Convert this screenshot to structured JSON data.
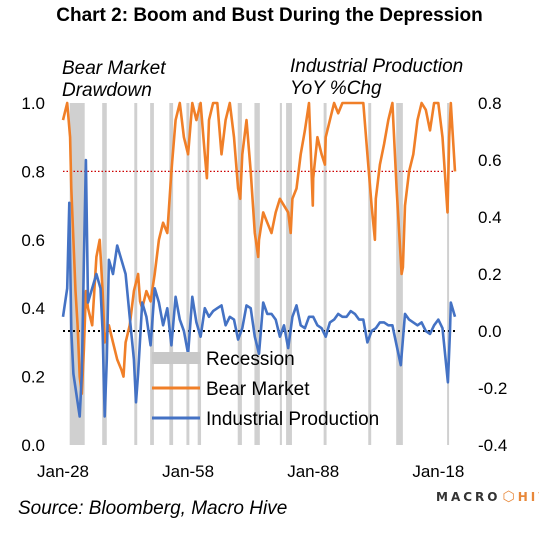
{
  "chart_data": {
    "type": "line",
    "title": "Chart 2: Boom and Bust During the Depression",
    "left_axis": {
      "label": "Bear Market Drawdown",
      "min": 0.0,
      "max": 1.0,
      "ticks": [
        "0.0",
        "0.2",
        "0.4",
        "0.6",
        "0.8",
        "1.0"
      ]
    },
    "right_axis": {
      "label": "Industrial Production YoY %Chg",
      "min": -0.4,
      "max": 0.8,
      "ticks": [
        "-0.4",
        "-0.2",
        "0.0",
        "0.2",
        "0.4",
        "0.6",
        "0.8"
      ]
    },
    "x_axis": {
      "min": 1928,
      "max": 2022,
      "ticks": [
        "Jan-28",
        "Jan-58",
        "Jan-88",
        "Jan-18"
      ],
      "tick_years": [
        1928,
        1958,
        1988,
        2018
      ]
    },
    "reference_lines": [
      {
        "axis": "left",
        "value": 0.8,
        "style": "dotted",
        "color": "#cc0000"
      },
      {
        "axis": "right",
        "value": 0.0,
        "style": "dotted",
        "color": "#000000"
      }
    ],
    "legend": {
      "placement": "bottom-center",
      "entries": [
        {
          "label": "Recession",
          "color": "#c8c8c8"
        },
        {
          "label": "Bear Market",
          "color": "#f07f28"
        },
        {
          "label": "Industrial Production",
          "color": "#4472c4"
        }
      ]
    },
    "recessions": [
      [
        1929.6,
        1933.2
      ],
      [
        1937.4,
        1938.5
      ],
      [
        1945.1,
        1945.8
      ],
      [
        1948.9,
        1949.8
      ],
      [
        1953.5,
        1954.4
      ],
      [
        1957.6,
        1958.3
      ],
      [
        1960.3,
        1961.1
      ],
      [
        1969.9,
        1970.9
      ],
      [
        1973.9,
        1975.2
      ],
      [
        1980.0,
        1980.5
      ],
      [
        1981.5,
        1982.9
      ],
      [
        1990.5,
        1991.2
      ],
      [
        2001.2,
        2001.9
      ],
      [
        2007.9,
        2009.5
      ],
      [
        2020.1,
        2020.4
      ]
    ],
    "series": [
      {
        "name": "Bear Market",
        "axis": "left",
        "color": "#f07f28",
        "x": [
          1928,
          1929,
          1929.7,
          1930,
          1930.5,
          1931,
          1931.5,
          1932,
          1932.5,
          1933,
          1933.5,
          1934,
          1935,
          1936,
          1936.8,
          1937.5,
          1938,
          1939,
          1940,
          1941,
          1942,
          1942.5,
          1943,
          1944,
          1945,
          1946,
          1946.5,
          1947,
          1948,
          1949,
          1950,
          1951,
          1952,
          1953,
          1954,
          1955,
          1956,
          1957,
          1958,
          1959,
          1960,
          1961,
          1962,
          1962.5,
          1963,
          1964,
          1965,
          1966,
          1967,
          1968,
          1969,
          1970,
          1970.5,
          1971,
          1972,
          1973,
          1974,
          1974.8,
          1975,
          1976,
          1977,
          1978,
          1979,
          1980,
          1981,
          1982,
          1982.6,
          1983,
          1984,
          1985,
          1986,
          1987,
          1987.9,
          1988,
          1989,
          1990,
          1990.8,
          1991,
          1992,
          1993,
          1994,
          1995,
          1996,
          1997,
          1998,
          1999,
          2000,
          2001,
          2002,
          2002.8,
          2003,
          2004,
          2005,
          2006,
          2007,
          2008,
          2009.2,
          2009.5,
          2010,
          2011,
          2012,
          2013,
          2014,
          2015,
          2016,
          2017,
          2018,
          2019,
          2020.2,
          2020.6,
          2021,
          2022
        ],
        "y": [
          0.95,
          1.0,
          0.9,
          0.75,
          0.6,
          0.45,
          0.35,
          0.2,
          0.15,
          0.28,
          0.45,
          0.4,
          0.35,
          0.55,
          0.6,
          0.45,
          0.3,
          0.35,
          0.3,
          0.25,
          0.22,
          0.2,
          0.3,
          0.35,
          0.45,
          0.5,
          0.42,
          0.4,
          0.45,
          0.42,
          0.5,
          0.6,
          0.65,
          0.62,
          0.8,
          0.95,
          1.0,
          0.9,
          0.85,
          1.0,
          0.95,
          1.0,
          0.85,
          0.78,
          0.95,
          1.0,
          1.0,
          0.85,
          0.95,
          1.0,
          0.9,
          0.75,
          0.72,
          0.85,
          0.95,
          0.8,
          0.62,
          0.55,
          0.6,
          0.68,
          0.65,
          0.62,
          0.68,
          0.72,
          0.7,
          0.68,
          0.62,
          0.72,
          0.75,
          0.85,
          0.92,
          1.0,
          0.7,
          0.78,
          0.9,
          0.85,
          0.82,
          0.9,
          0.95,
          1.0,
          0.97,
          1.0,
          1.0,
          1.0,
          1.0,
          1.0,
          1.0,
          0.85,
          0.7,
          0.6,
          0.72,
          0.82,
          0.88,
          0.95,
          1.0,
          0.75,
          0.5,
          0.52,
          0.7,
          0.8,
          0.85,
          0.95,
          1.0,
          0.98,
          0.92,
          1.0,
          1.0,
          0.9,
          0.68,
          0.9,
          1.0,
          0.8
        ]
      },
      {
        "name": "Industrial Production",
        "axis": "right",
        "color": "#4472c4",
        "x": [
          1928,
          1929,
          1929.5,
          1930,
          1930.5,
          1931,
          1931.5,
          1932,
          1932.5,
          1933,
          1933.5,
          1934,
          1935,
          1936,
          1937,
          1937.5,
          1938,
          1938.5,
          1939,
          1940,
          1941,
          1942,
          1943,
          1944,
          1945,
          1945.5,
          1946,
          1947,
          1948,
          1949,
          1950,
          1951,
          1952,
          1953,
          1954,
          1955,
          1956,
          1957,
          1958,
          1959,
          1960,
          1961,
          1962,
          1963,
          1964,
          1965,
          1966,
          1967,
          1968,
          1969,
          1970,
          1971,
          1972,
          1973,
          1974,
          1975,
          1976,
          1977,
          1978,
          1979,
          1980,
          1981,
          1982,
          1983,
          1984,
          1985,
          1986,
          1987,
          1988,
          1989,
          1990,
          1991,
          1992,
          1993,
          1994,
          1995,
          1996,
          1997,
          1998,
          1999,
          2000,
          2001,
          2002,
          2003,
          2004,
          2005,
          2006,
          2007,
          2008,
          2009,
          2010,
          2011,
          2012,
          2013,
          2014,
          2015,
          2016,
          2017,
          2018,
          2019,
          2020.3,
          2020.8,
          2021,
          2022
        ],
        "y": [
          0.05,
          0.15,
          0.45,
          0.0,
          -0.15,
          -0.2,
          -0.25,
          -0.3,
          -0.15,
          0.25,
          0.6,
          0.1,
          0.15,
          0.2,
          0.15,
          0.0,
          -0.3,
          -0.1,
          0.25,
          0.2,
          0.3,
          0.25,
          0.2,
          0.05,
          -0.1,
          -0.25,
          -0.15,
          0.1,
          0.05,
          -0.05,
          0.15,
          0.1,
          0.02,
          0.08,
          -0.05,
          0.12,
          0.04,
          0.0,
          -0.08,
          0.12,
          0.03,
          -0.02,
          0.08,
          0.05,
          0.07,
          0.08,
          0.09,
          0.02,
          0.05,
          0.04,
          -0.03,
          0.01,
          0.09,
          0.08,
          -0.02,
          -0.08,
          0.1,
          0.06,
          0.06,
          0.04,
          -0.02,
          0.02,
          -0.06,
          0.05,
          0.09,
          0.02,
          0.01,
          0.05,
          0.05,
          0.02,
          0.01,
          -0.02,
          0.03,
          0.04,
          0.06,
          0.05,
          0.05,
          0.07,
          0.06,
          0.04,
          0.04,
          -0.04,
          0.0,
          0.01,
          0.03,
          0.03,
          0.02,
          0.02,
          -0.05,
          -0.12,
          0.06,
          0.04,
          0.03,
          0.02,
          0.03,
          0.0,
          -0.01,
          0.02,
          0.04,
          0.01,
          -0.18,
          0.0,
          0.1,
          0.05
        ]
      }
    ]
  }
}
